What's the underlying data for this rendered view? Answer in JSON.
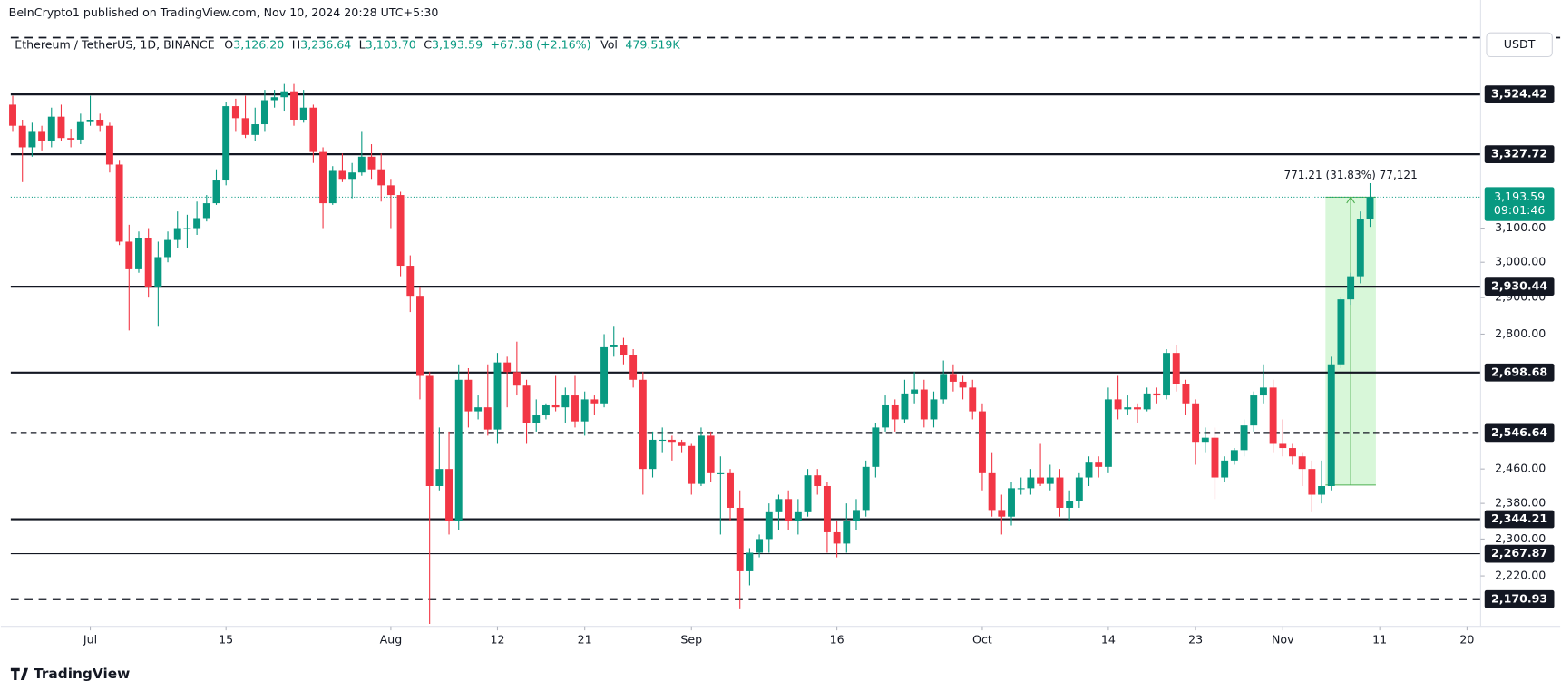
{
  "header": {
    "title": "BeInCrypto1 published on TradingView.com, Nov 10, 2024 20:28 UTC+5:30"
  },
  "legend": {
    "symbol": "Ethereum / TetherUS, 1D, BINANCE",
    "fields": [
      {
        "key": "O",
        "value": "3,126.20"
      },
      {
        "key": "H",
        "value": "3,236.64"
      },
      {
        "key": "L",
        "value": "3,103.70"
      },
      {
        "key": "C",
        "value": "3,193.59"
      }
    ],
    "change": "+67.38 (+2.16%)",
    "volume_key": "Vol",
    "volume": "479.519K"
  },
  "currency": "USDT",
  "footer": {
    "brand": "TradingView"
  },
  "chart_data": {
    "type": "candlestick",
    "log_scale": true,
    "up_color": "#089981",
    "down_color": "#f23645",
    "xlim": [
      -0.2,
      151.4
    ],
    "ylim": [
      2115,
      3750
    ],
    "yticks": [
      {
        "value": 3100,
        "label": "3,100.00"
      },
      {
        "value": 3000,
        "label": "3,000.00"
      },
      {
        "value": 2900,
        "label": "2,900.00"
      },
      {
        "value": 2800,
        "label": "2,800.00"
      },
      {
        "value": 2460,
        "label": "2,460.00"
      },
      {
        "value": 2380,
        "label": "2,380.00"
      },
      {
        "value": 2300,
        "label": "2,300.00"
      },
      {
        "value": 2220,
        "label": "2,220.00"
      }
    ],
    "x_labels": [
      {
        "index": 8,
        "label": "Jul"
      },
      {
        "index": 22,
        "label": "15"
      },
      {
        "index": 39,
        "label": "Aug"
      },
      {
        "index": 50,
        "label": "12"
      },
      {
        "index": 59,
        "label": "21"
      },
      {
        "index": 70,
        "label": "Sep"
      },
      {
        "index": 85,
        "label": "16"
      },
      {
        "index": 100,
        "label": "Oct"
      },
      {
        "index": 113,
        "label": "14"
      },
      {
        "index": 122,
        "label": "23"
      },
      {
        "index": 131,
        "label": "Nov"
      },
      {
        "index": 141,
        "label": "11"
      },
      {
        "index": 150,
        "label": "20"
      }
    ],
    "top_line": 3722,
    "levels": [
      {
        "value": 3524.42,
        "label": "3,524.42",
        "style": "solid"
      },
      {
        "value": 3327.72,
        "label": "3,327.72",
        "style": "solid"
      },
      {
        "value": 2930.44,
        "label": "2,930.44",
        "style": "solid"
      },
      {
        "value": 2698.68,
        "label": "2,698.68",
        "style": "solid"
      },
      {
        "value": 2546.64,
        "label": "2,546.64",
        "style": "dashed"
      },
      {
        "value": 2344.21,
        "label": "2,344.21",
        "style": "solid"
      },
      {
        "value": 2267.87,
        "label": "2,267.87",
        "style": "thin"
      },
      {
        "value": 2170.93,
        "label": "2,170.93",
        "style": "dashed"
      }
    ],
    "last_price": {
      "value": 3193.59,
      "label": "3,193.59",
      "countdown": "09:01:46"
    },
    "measure": {
      "start": 136,
      "end": 140,
      "low": 2422.38,
      "high": 3193.59,
      "label": "771.21 (31.83%) 77,121"
    },
    "candles": [
      [
        3490,
        3520,
        3400,
        3420
      ],
      [
        3420,
        3440,
        3240,
        3350
      ],
      [
        3350,
        3430,
        3320,
        3400
      ],
      [
        3400,
        3420,
        3340,
        3370
      ],
      [
        3370,
        3480,
        3350,
        3450
      ],
      [
        3450,
        3490,
        3370,
        3380
      ],
      [
        3380,
        3410,
        3350,
        3375
      ],
      [
        3375,
        3460,
        3360,
        3435
      ],
      [
        3435,
        3520,
        3420,
        3440
      ],
      [
        3440,
        3460,
        3400,
        3420
      ],
      [
        3420,
        3430,
        3270,
        3295
      ],
      [
        3295,
        3310,
        3050,
        3060
      ],
      [
        3060,
        3110,
        2810,
        2980
      ],
      [
        2980,
        3090,
        2970,
        3070
      ],
      [
        3070,
        3100,
        2900,
        2930
      ],
      [
        2930,
        3060,
        2820,
        3015
      ],
      [
        3015,
        3090,
        3000,
        3065
      ],
      [
        3065,
        3150,
        3040,
        3100
      ],
      [
        3100,
        3140,
        3040,
        3100
      ],
      [
        3100,
        3180,
        3080,
        3130
      ],
      [
        3130,
        3200,
        3120,
        3175
      ],
      [
        3175,
        3280,
        3170,
        3245
      ],
      [
        3245,
        3500,
        3230,
        3485
      ],
      [
        3485,
        3510,
        3400,
        3445
      ],
      [
        3445,
        3520,
        3380,
        3390
      ],
      [
        3390,
        3480,
        3370,
        3425
      ],
      [
        3425,
        3540,
        3400,
        3505
      ],
      [
        3505,
        3540,
        3480,
        3515
      ],
      [
        3515,
        3560,
        3470,
        3535
      ],
      [
        3535,
        3560,
        3420,
        3440
      ],
      [
        3440,
        3540,
        3430,
        3480
      ],
      [
        3480,
        3490,
        3300,
        3335
      ],
      [
        3335,
        3350,
        3100,
        3175
      ],
      [
        3175,
        3290,
        3170,
        3275
      ],
      [
        3275,
        3330,
        3240,
        3250
      ],
      [
        3250,
        3300,
        3190,
        3270
      ],
      [
        3270,
        3400,
        3260,
        3320
      ],
      [
        3320,
        3360,
        3250,
        3280
      ],
      [
        3280,
        3330,
        3180,
        3230
      ],
      [
        3230,
        3250,
        3100,
        3200
      ],
      [
        3200,
        3210,
        2960,
        2990
      ],
      [
        2990,
        3020,
        2860,
        2905
      ],
      [
        2905,
        2930,
        2630,
        2690
      ],
      [
        2690,
        2700,
        2120,
        2420
      ],
      [
        2420,
        2560,
        2410,
        2460
      ],
      [
        2460,
        2550,
        2310,
        2340
      ],
      [
        2340,
        2720,
        2320,
        2680
      ],
      [
        2680,
        2710,
        2560,
        2600
      ],
      [
        2600,
        2640,
        2580,
        2610
      ],
      [
        2610,
        2720,
        2540,
        2555
      ],
      [
        2555,
        2750,
        2520,
        2725
      ],
      [
        2725,
        2740,
        2610,
        2700
      ],
      [
        2700,
        2780,
        2640,
        2665
      ],
      [
        2665,
        2680,
        2520,
        2570
      ],
      [
        2570,
        2630,
        2550,
        2590
      ],
      [
        2590,
        2620,
        2580,
        2615
      ],
      [
        2615,
        2690,
        2600,
        2610
      ],
      [
        2610,
        2660,
        2570,
        2640
      ],
      [
        2640,
        2690,
        2560,
        2575
      ],
      [
        2575,
        2650,
        2540,
        2630
      ],
      [
        2630,
        2640,
        2590,
        2620
      ],
      [
        2620,
        2800,
        2610,
        2765
      ],
      [
        2765,
        2820,
        2740,
        2770
      ],
      [
        2770,
        2790,
        2720,
        2745
      ],
      [
        2745,
        2760,
        2660,
        2680
      ],
      [
        2680,
        2700,
        2400,
        2460
      ],
      [
        2460,
        2550,
        2440,
        2530
      ],
      [
        2530,
        2560,
        2500,
        2530
      ],
      [
        2530,
        2540,
        2480,
        2525
      ],
      [
        2525,
        2530,
        2500,
        2515
      ],
      [
        2515,
        2520,
        2400,
        2425
      ],
      [
        2425,
        2560,
        2420,
        2540
      ],
      [
        2540,
        2550,
        2430,
        2450
      ],
      [
        2450,
        2490,
        2310,
        2450
      ],
      [
        2450,
        2460,
        2340,
        2370
      ],
      [
        2370,
        2410,
        2150,
        2230
      ],
      [
        2230,
        2280,
        2200,
        2270
      ],
      [
        2270,
        2310,
        2260,
        2300
      ],
      [
        2300,
        2380,
        2270,
        2360
      ],
      [
        2360,
        2400,
        2320,
        2390
      ],
      [
        2390,
        2410,
        2320,
        2340
      ],
      [
        2340,
        2390,
        2310,
        2360
      ],
      [
        2360,
        2460,
        2350,
        2445
      ],
      [
        2445,
        2460,
        2400,
        2420
      ],
      [
        2420,
        2430,
        2270,
        2315
      ],
      [
        2315,
        2340,
        2260,
        2290
      ],
      [
        2290,
        2380,
        2270,
        2340
      ],
      [
        2340,
        2390,
        2320,
        2365
      ],
      [
        2365,
        2480,
        2350,
        2465
      ],
      [
        2465,
        2570,
        2440,
        2560
      ],
      [
        2560,
        2640,
        2550,
        2615
      ],
      [
        2615,
        2630,
        2550,
        2580
      ],
      [
        2580,
        2680,
        2570,
        2645
      ],
      [
        2645,
        2700,
        2620,
        2655
      ],
      [
        2655,
        2680,
        2560,
        2580
      ],
      [
        2580,
        2650,
        2560,
        2630
      ],
      [
        2630,
        2730,
        2620,
        2695
      ],
      [
        2695,
        2720,
        2650,
        2675
      ],
      [
        2675,
        2690,
        2630,
        2660
      ],
      [
        2660,
        2680,
        2580,
        2600
      ],
      [
        2600,
        2620,
        2410,
        2450
      ],
      [
        2450,
        2500,
        2350,
        2365
      ],
      [
        2365,
        2400,
        2310,
        2350
      ],
      [
        2350,
        2430,
        2330,
        2415
      ],
      [
        2415,
        2440,
        2400,
        2415
      ],
      [
        2415,
        2460,
        2400,
        2440
      ],
      [
        2440,
        2520,
        2420,
        2425
      ],
      [
        2425,
        2470,
        2410,
        2440
      ],
      [
        2440,
        2460,
        2350,
        2370
      ],
      [
        2370,
        2410,
        2340,
        2385
      ],
      [
        2385,
        2450,
        2370,
        2440
      ],
      [
        2440,
        2490,
        2420,
        2475
      ],
      [
        2475,
        2490,
        2440,
        2465
      ],
      [
        2465,
        2660,
        2450,
        2630
      ],
      [
        2630,
        2690,
        2580,
        2605
      ],
      [
        2605,
        2640,
        2590,
        2610
      ],
      [
        2610,
        2620,
        2570,
        2605
      ],
      [
        2605,
        2660,
        2600,
        2645
      ],
      [
        2645,
        2660,
        2620,
        2640
      ],
      [
        2640,
        2760,
        2630,
        2750
      ],
      [
        2750,
        2770,
        2650,
        2670
      ],
      [
        2670,
        2680,
        2590,
        2620
      ],
      [
        2620,
        2630,
        2470,
        2525
      ],
      [
        2525,
        2560,
        2500,
        2535
      ],
      [
        2535,
        2560,
        2390,
        2440
      ],
      [
        2440,
        2490,
        2430,
        2480
      ],
      [
        2480,
        2510,
        2470,
        2505
      ],
      [
        2505,
        2580,
        2490,
        2565
      ],
      [
        2565,
        2650,
        2550,
        2640
      ],
      [
        2640,
        2720,
        2620,
        2660
      ],
      [
        2660,
        2680,
        2500,
        2520
      ],
      [
        2520,
        2580,
        2490,
        2510
      ],
      [
        2510,
        2520,
        2470,
        2490
      ],
      [
        2490,
        2500,
        2420,
        2460
      ],
      [
        2460,
        2480,
        2360,
        2400
      ],
      [
        2400,
        2480,
        2380,
        2420
      ],
      [
        2420,
        2740,
        2410,
        2720
      ],
      [
        2720,
        2900,
        2710,
        2895
      ],
      [
        2895,
        2970,
        2880,
        2960
      ],
      [
        2960,
        3150,
        2940,
        3126.2
      ],
      [
        3126.2,
        3236.64,
        3103.7,
        3193.59
      ]
    ]
  }
}
